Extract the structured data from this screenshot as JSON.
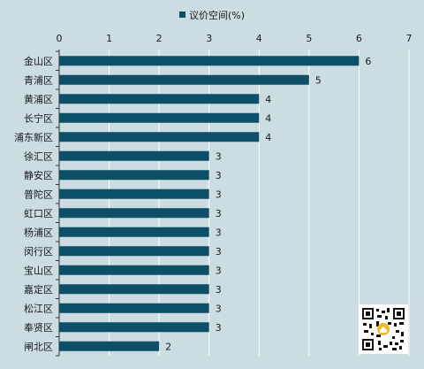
{
  "legend": {
    "label": "议价空间(%)",
    "color": "#0e4f68"
  },
  "chart_data": {
    "type": "bar",
    "orientation": "horizontal",
    "categories": [
      "金山区",
      "青浦区",
      "黄浦区",
      "长宁区",
      "浦东新区",
      "徐汇区",
      "静安区",
      "普陀区",
      "虹口区",
      "杨浦区",
      "闵行区",
      "宝山区",
      "嘉定区",
      "松江区",
      "奉贤区",
      "闸北区"
    ],
    "series": [
      {
        "name": "议价空间(%)",
        "values": [
          6,
          5,
          4,
          4,
          4,
          3,
          3,
          3,
          3,
          3,
          3,
          3,
          3,
          3,
          3,
          2
        ]
      }
    ],
    "xlim": [
      0,
      7
    ],
    "xticks": [
      0,
      1,
      2,
      3,
      4,
      5,
      6,
      7
    ],
    "axis_position": "top",
    "grid": true,
    "legend_position": "top-center",
    "data_labels": true,
    "bar_color": "#0e4f68"
  }
}
